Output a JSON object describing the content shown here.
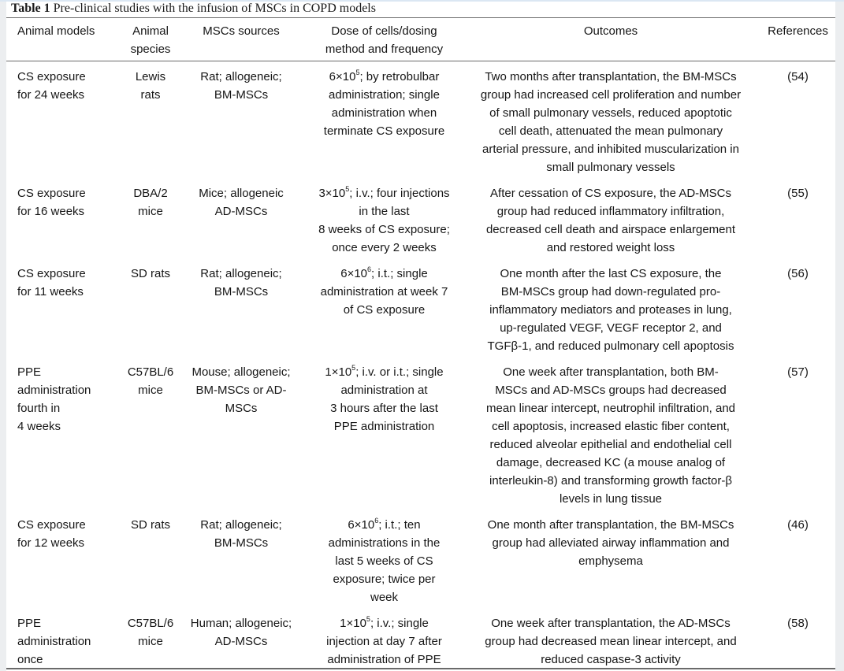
{
  "caption": {
    "label": "Table 1",
    "title": "Pre-clinical studies with the infusion of MSCs in COPD models"
  },
  "columns": [
    [
      "Animal models"
    ],
    [
      "Animal",
      "species"
    ],
    [
      "MSCs sources"
    ],
    [
      "Dose of cells/dosing",
      "method and frequency"
    ],
    [
      "Outcomes"
    ],
    [
      "References"
    ]
  ],
  "rows": [
    {
      "model": [
        "CS exposure",
        "for 24 weeks"
      ],
      "species": [
        "Lewis",
        "rats"
      ],
      "source": [
        "Rat; allogeneic;",
        "BM-MSCs"
      ],
      "dose_first": {
        "base": "6×10",
        "exp": "5",
        "rest": "; by retrobulbar"
      },
      "dose": [
        "administration; single",
        "administration when",
        "terminate CS exposure"
      ],
      "outcomes": [
        "Two months after transplantation, the BM-MSCs",
        "group had increased cell proliferation and number",
        "of small pulmonary vessels, reduced apoptotic",
        "cell death, attenuated the mean pulmonary",
        "arterial pressure, and inhibited muscularization in",
        "small pulmonary vessels"
      ],
      "ref": "(54)"
    },
    {
      "model": [
        "CS exposure",
        "for 16 weeks"
      ],
      "species": [
        "DBA/2",
        "mice"
      ],
      "source": [
        "Mice; allogeneic",
        "AD-MSCs"
      ],
      "dose_first": {
        "base": "3×10",
        "exp": "5",
        "rest": "; i.v.; four injections"
      },
      "dose": [
        "in the last",
        "8 weeks of CS exposure;",
        "once every 2 weeks"
      ],
      "outcomes": [
        "After cessation of CS exposure, the AD-MSCs",
        "group had reduced inflammatory infiltration,",
        "decreased cell death and airspace enlargement",
        "and restored weight loss"
      ],
      "ref": "(55)"
    },
    {
      "model": [
        "CS exposure",
        "for 11 weeks"
      ],
      "species": [
        "SD rats"
      ],
      "source": [
        "Rat; allogeneic;",
        "BM-MSCs"
      ],
      "dose_first": {
        "base": "6×10",
        "exp": "6",
        "rest": "; i.t.; single"
      },
      "dose": [
        "administration at week 7",
        "of CS exposure"
      ],
      "outcomes": [
        "One month after the last CS exposure, the",
        "BM-MSCs group had down-regulated pro-",
        "inflammatory mediators and proteases in lung,",
        "up-regulated VEGF, VEGF receptor 2, and",
        "TGFβ-1, and reduced pulmonary cell apoptosis"
      ],
      "ref": "(56)"
    },
    {
      "model": [
        "PPE",
        "administration",
        "fourth in",
        "4 weeks"
      ],
      "species": [
        "C57BL/6",
        "mice"
      ],
      "source": [
        "Mouse; allogeneic;",
        "BM-MSCs or AD-",
        "MSCs"
      ],
      "dose_first": {
        "base": "1×10",
        "exp": "5",
        "rest": "; i.v. or i.t.; single"
      },
      "dose": [
        "administration at",
        "3 hours after the last",
        "PPE administration"
      ],
      "outcomes": [
        "One week after transplantation, both BM-",
        "MSCs and AD-MSCs groups had decreased",
        "mean linear intercept, neutrophil infiltration, and",
        "cell apoptosis, increased elastic fiber content,",
        "reduced alveolar epithelial and endothelial cell",
        "damage, decreased KC (a mouse analog of",
        "interleukin-8) and transforming growth factor-β",
        "levels in lung tissue"
      ],
      "ref": "(57)"
    },
    {
      "model": [
        "CS exposure",
        "for 12 weeks"
      ],
      "species": [
        "SD rats"
      ],
      "source": [
        "Rat; allogeneic;",
        "BM-MSCs"
      ],
      "dose_first": {
        "base": "6×10",
        "exp": "6",
        "rest": "; i.t.; ten"
      },
      "dose": [
        "administrations in the",
        "last 5 weeks of CS",
        "exposure; twice per",
        "week"
      ],
      "outcomes": [
        "One month after transplantation, the BM-MSCs",
        "group had alleviated airway inflammation and",
        "emphysema"
      ],
      "ref": "(46)"
    },
    {
      "model": [
        "PPE",
        "administration",
        "once"
      ],
      "species": [
        "C57BL/6",
        "mice"
      ],
      "source": [
        "Human; allogeneic;",
        "AD-MSCs"
      ],
      "dose_first": {
        "base": "1×10",
        "exp": "5",
        "rest": "; i.v.; single"
      },
      "dose": [
        "injection at day 7 after",
        "administration of PPE"
      ],
      "outcomes": [
        "One week after transplantation, the AD-MSCs",
        "group had decreased mean linear intercept, and",
        "reduced caspase-3 activity"
      ],
      "ref": "(58)"
    }
  ]
}
